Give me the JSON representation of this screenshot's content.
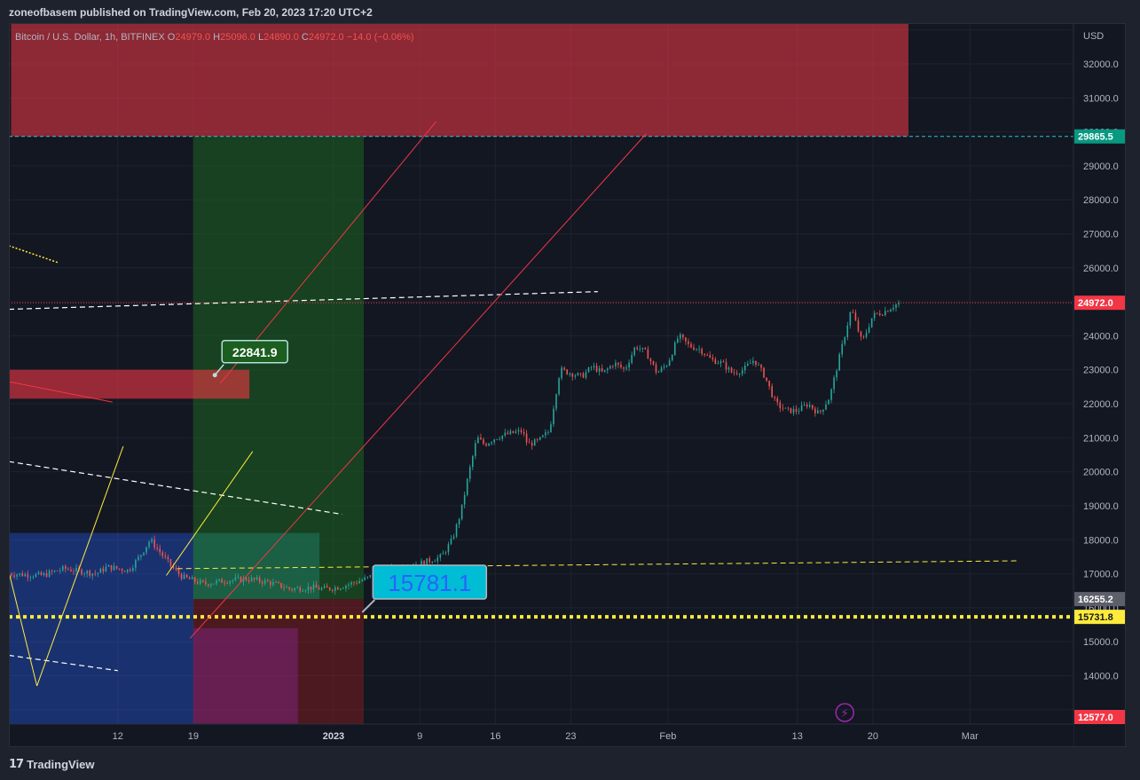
{
  "header": {
    "publish_info": "zoneofbasem published on TradingView.com, Feb 20, 2023 17:20 UTC+2"
  },
  "footer": {
    "logo_mark": "17",
    "brand": "TradingView"
  },
  "colors": {
    "background": "#131722",
    "grid": "#1f2330",
    "up": "#26a69a",
    "down": "#ef5350",
    "text": "#b2b5be",
    "last_price": "#f23645",
    "target": "#089981",
    "support": "#ffeb3b"
  },
  "chart_data": {
    "type": "candlestick",
    "symbol": "Bitcoin / U.S. Dollar, 1h, BITFINEX",
    "ohlc": {
      "o_label": "O",
      "o": "24979.0",
      "h_label": "H",
      "h": "25096.0",
      "l_label": "L",
      "l": "24890.0",
      "c_label": "C",
      "c": "24972.0",
      "change": "−14.0 (−0.06%)"
    },
    "currency": "USD",
    "y_ticks": [
      "14000.0",
      "15000.0",
      "16000.0",
      "17000.0",
      "18000.0",
      "19000.0",
      "20000.0",
      "21000.0",
      "22000.0",
      "23000.0",
      "24000.0",
      "25000.0",
      "26000.0",
      "27000.0",
      "28000.0",
      "29000.0",
      "30000.0",
      "31000.0",
      "32000.0"
    ],
    "x_ticks": [
      {
        "label": "12",
        "day": -20,
        "bold": false
      },
      {
        "label": "19",
        "day": -13,
        "bold": false
      },
      {
        "label": "2023",
        "day": 0,
        "bold": true
      },
      {
        "label": "9",
        "day": 8,
        "bold": false
      },
      {
        "label": "16",
        "day": 15,
        "bold": false
      },
      {
        "label": "23",
        "day": 22,
        "bold": false
      },
      {
        "label": "Feb",
        "day": 31,
        "bold": false
      },
      {
        "label": "13",
        "day": 43,
        "bold": false
      },
      {
        "label": "20",
        "day": 50,
        "bold": false
      },
      {
        "label": "Mar",
        "day": 59,
        "bold": false
      }
    ],
    "x_axis": "days since Jan 1 2023",
    "y_range": [
      12577,
      33200
    ],
    "x_range": [
      -30.1,
      68.6
    ],
    "price_labels": [
      {
        "value": "29865.5",
        "price": 29865.5,
        "color": "#089981"
      },
      {
        "value": "24972.0",
        "price": 24972.0,
        "color": "#f23645"
      },
      {
        "value": "16255.2",
        "price": 16255.2,
        "color": "#5d606b"
      },
      {
        "value": "15731.8",
        "price": 15731.8,
        "color": "#ffeb3b"
      },
      {
        "value": "12577.0",
        "price": 12577.0,
        "color": "#f23645"
      }
    ],
    "annotations": [
      {
        "text": "22841.9",
        "day": -11,
        "price": 22841.9
      },
      {
        "text": "15781.1",
        "day": 4.8,
        "price": 16700
      }
    ],
    "price_path": [
      [
        -30.1,
        17000
      ],
      [
        -27,
        16950
      ],
      [
        -25,
        17150
      ],
      [
        -22,
        17000
      ],
      [
        -21,
        17200
      ],
      [
        -19,
        17100
      ],
      [
        -18,
        17500
      ],
      [
        -17,
        18000
      ],
      [
        -16,
        17600
      ],
      [
        -15,
        17200
      ],
      [
        -14,
        16900
      ],
      [
        -13,
        16800
      ],
      [
        -12,
        16700
      ],
      [
        -10,
        16800
      ],
      [
        -8,
        16850
      ],
      [
        -6,
        16750
      ],
      [
        -4,
        16550
      ],
      [
        -2,
        16600
      ],
      [
        -1,
        16550
      ],
      [
        0,
        16580
      ],
      [
        1,
        16650
      ],
      [
        2,
        16750
      ],
      [
        3,
        16850
      ],
      [
        4,
        17000
      ],
      [
        5,
        17100
      ],
      [
        6,
        17200
      ],
      [
        7,
        17250
      ],
      [
        8,
        17300
      ],
      [
        9,
        17400
      ],
      [
        10,
        17500
      ],
      [
        11,
        18000
      ],
      [
        11.8,
        18800
      ],
      [
        12.5,
        19900
      ],
      [
        13.3,
        21000
      ],
      [
        14,
        20800
      ],
      [
        15,
        21000
      ],
      [
        16,
        21100
      ],
      [
        17.5,
        21200
      ],
      [
        18,
        20800
      ],
      [
        19,
        20900
      ],
      [
        20,
        21200
      ],
      [
        21,
        23000
      ],
      [
        22,
        22900
      ],
      [
        23,
        22800
      ],
      [
        24,
        23100
      ],
      [
        25,
        22900
      ],
      [
        26,
        23200
      ],
      [
        27,
        23000
      ],
      [
        28,
        23700
      ],
      [
        29,
        23500
      ],
      [
        30,
        22900
      ],
      [
        31,
        23200
      ],
      [
        32,
        24000
      ],
      [
        33,
        23700
      ],
      [
        34,
        23600
      ],
      [
        35,
        23300
      ],
      [
        36,
        23200
      ],
      [
        37,
        22900
      ],
      [
        38,
        23000
      ],
      [
        39,
        23300
      ],
      [
        40,
        22800
      ],
      [
        41,
        22000
      ],
      [
        42,
        21800
      ],
      [
        43,
        21800
      ],
      [
        44,
        22000
      ],
      [
        45,
        21700
      ],
      [
        46,
        22200
      ],
      [
        47,
        23500
      ],
      [
        48,
        24800
      ],
      [
        49,
        23800
      ],
      [
        50,
        24600
      ],
      [
        51,
        24700
      ],
      [
        52,
        24900
      ],
      [
        52.6,
        24972
      ]
    ]
  }
}
